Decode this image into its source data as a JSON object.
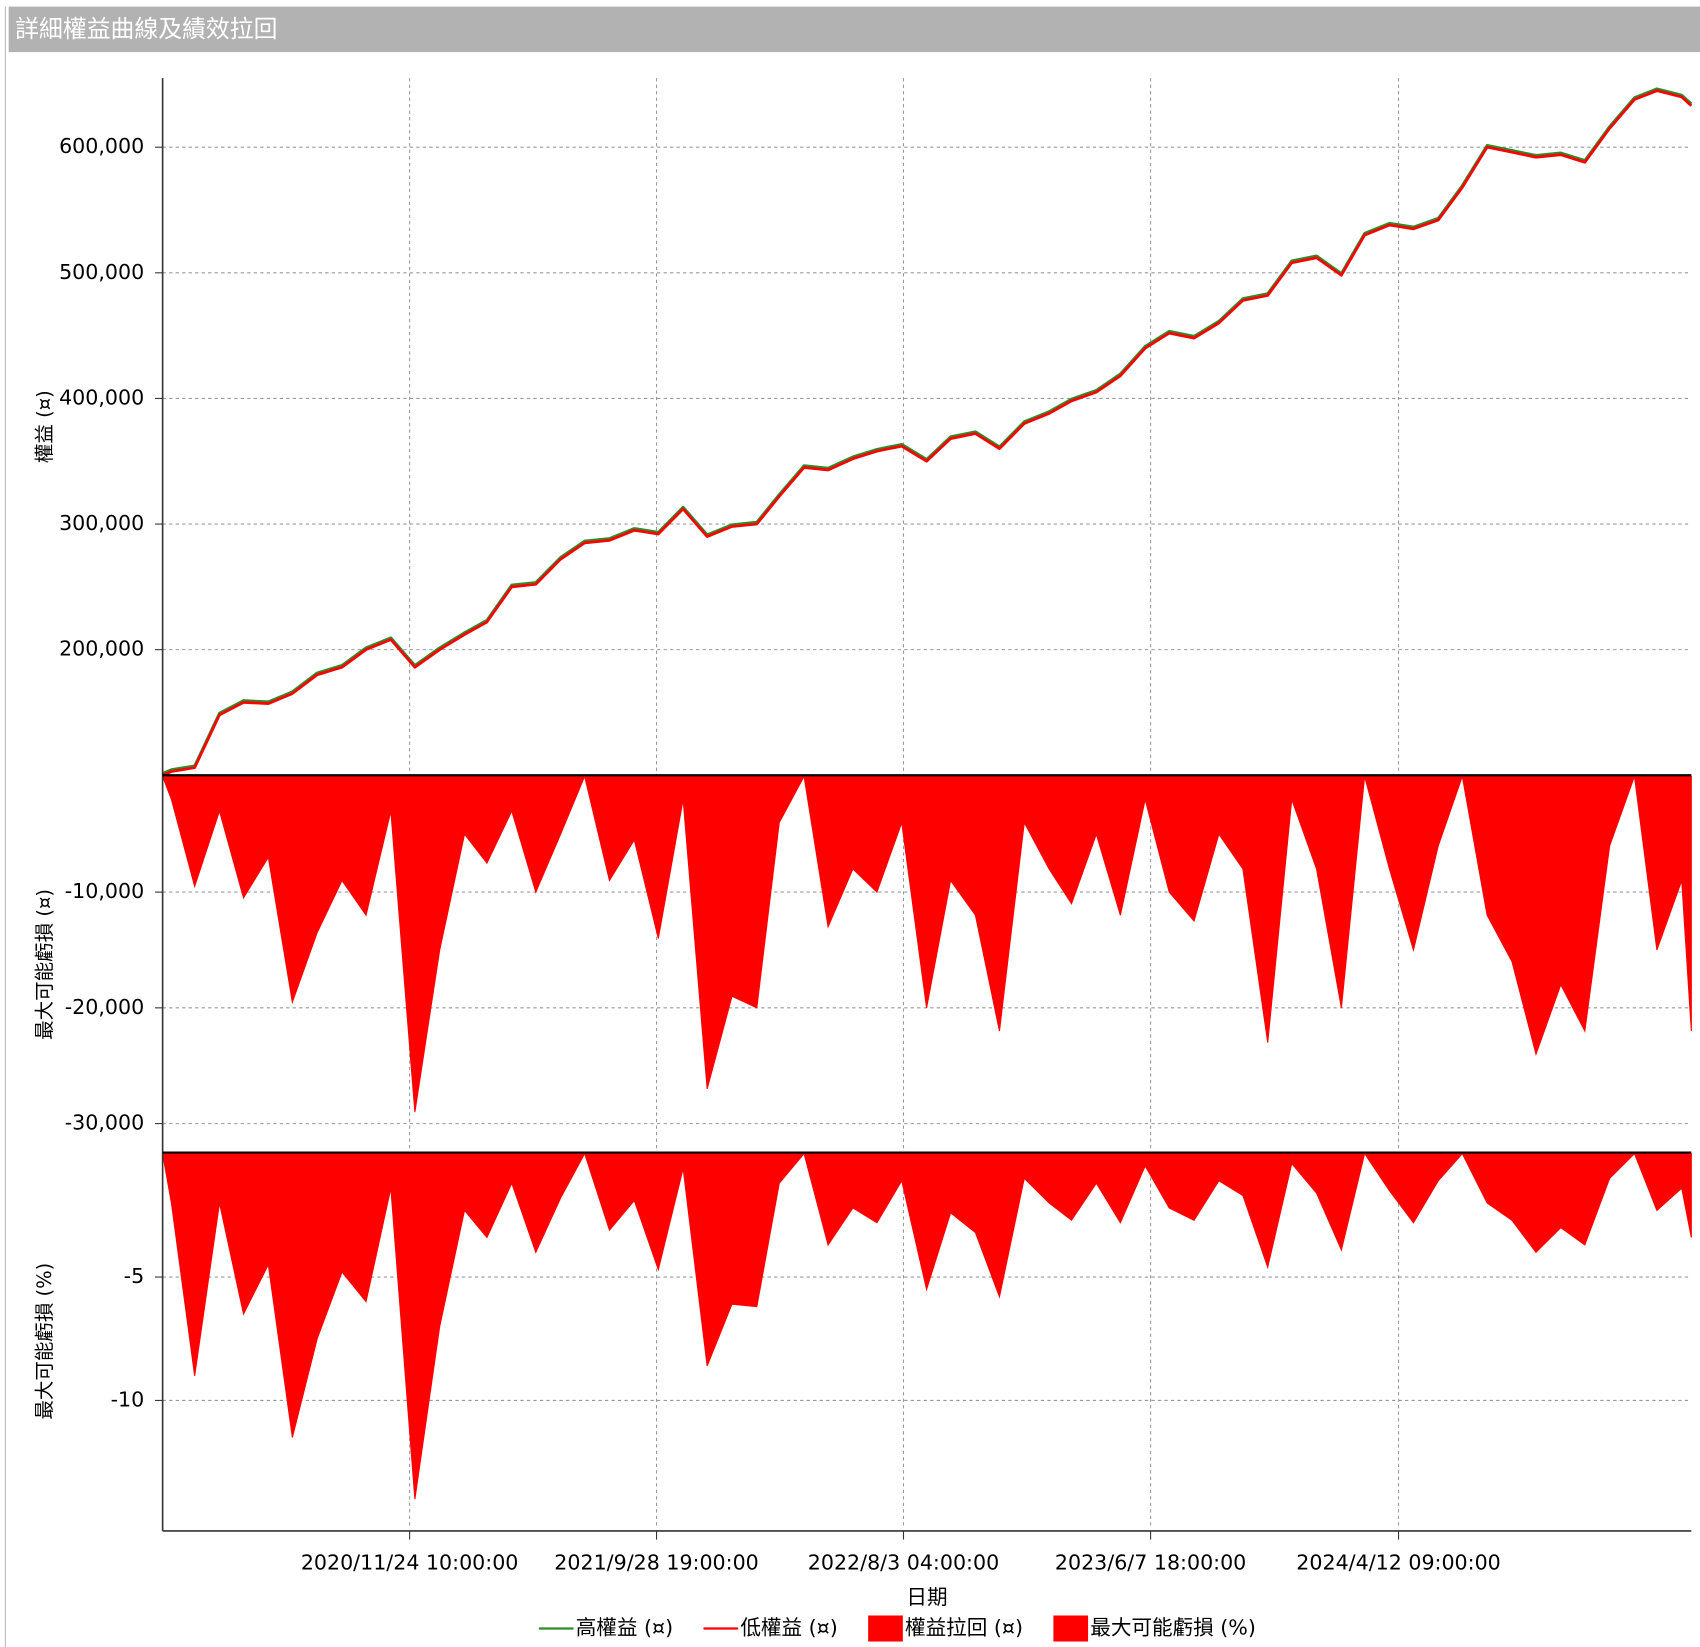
{
  "header": {
    "title": "詳細權益曲線及績效拉回"
  },
  "chart_data": [
    {
      "type": "line",
      "y_label": "權益 (¤)",
      "x": [
        "2020/1/21",
        "2020/2/1",
        "2020/3/1",
        "2020/4/1",
        "2020/5/1",
        "2020/6/1",
        "2020/7/1",
        "2020/8/1",
        "2020/9/1",
        "2020/10/1",
        "2020/11/1",
        "2020/12/1",
        "2021/1/1",
        "2021/2/1",
        "2021/3/1",
        "2021/4/1",
        "2021/5/1",
        "2021/6/1",
        "2021/7/1",
        "2021/8/1",
        "2021/9/1",
        "2021/10/1",
        "2021/11/1",
        "2021/12/1",
        "2022/1/1",
        "2022/2/1",
        "2022/3/1",
        "2022/4/1",
        "2022/5/1",
        "2022/6/1",
        "2022/7/1",
        "2022/8/1",
        "2022/9/1",
        "2022/10/1",
        "2022/11/1",
        "2022/12/1",
        "2023/1/1",
        "2023/2/1",
        "2023/3/1",
        "2023/4/1",
        "2023/5/1",
        "2023/6/1",
        "2023/7/1",
        "2023/8/1",
        "2023/9/1",
        "2023/10/1",
        "2023/11/1",
        "2023/12/1",
        "2024/1/1",
        "2024/2/1",
        "2024/3/1",
        "2024/4/1",
        "2024/5/1",
        "2024/6/1",
        "2024/7/1",
        "2024/8/1",
        "2024/9/1",
        "2024/10/1",
        "2024/11/1",
        "2024/12/1",
        "2025/1/1",
        "2025/2/1",
        "2025/3/1",
        "2025/4/1",
        "2025/4/13"
      ],
      "ylim": [
        100000,
        655000
      ],
      "yticks": [
        {
          "value": 200000,
          "label": "200,000"
        },
        {
          "value": 300000,
          "label": "300,000"
        },
        {
          "value": 400000,
          "label": "400,000"
        },
        {
          "value": 500000,
          "label": "500,000"
        },
        {
          "value": 600000,
          "label": "600,000"
        }
      ],
      "grid": true,
      "series": [
        {
          "name": "高權益 (¤)",
          "color": "#2e8b2e",
          "values": [
            101500,
            104500,
            107500,
            149500,
            159500,
            158500,
            166500,
            181500,
            187500,
            201500,
            209500,
            187500,
            201500,
            213500,
            223500,
            251500,
            253500,
            273500,
            286500,
            288500,
            296500,
            293500,
            313500,
            291500,
            299500,
            301500,
            323500,
            346500,
            344500,
            353500,
            359500,
            363500,
            351500,
            369500,
            373500,
            361500,
            381500,
            389500,
            399500,
            406500,
            419500,
            441500,
            453500,
            449500,
            461500,
            479500,
            483500,
            509500,
            513500,
            499500,
            531500,
            539500,
            536500,
            543500,
            569500,
            601500,
            597500,
            593500,
            595500,
            589500,
            616500,
            639500,
            646500,
            641500,
            634500
          ]
        },
        {
          "name": "低權益 (¤)",
          "color": "#ff0000",
          "values": [
            100000,
            103000,
            106000,
            148000,
            158000,
            157000,
            165000,
            180000,
            186000,
            200000,
            208000,
            186000,
            200000,
            212000,
            222000,
            250000,
            252000,
            272000,
            285000,
            287000,
            295000,
            292000,
            312000,
            290000,
            298000,
            300000,
            322000,
            345000,
            343000,
            352000,
            358000,
            362000,
            350000,
            368000,
            372000,
            360000,
            380000,
            388000,
            398000,
            405000,
            418000,
            440000,
            452000,
            448000,
            460000,
            478000,
            482000,
            508000,
            512000,
            498000,
            530000,
            538000,
            535000,
            542000,
            568000,
            600000,
            596000,
            592000,
            594000,
            588000,
            615000,
            638000,
            645000,
            640000,
            633000
          ]
        }
      ]
    },
    {
      "type": "area",
      "y_label": "最大可能虧損 (¤)",
      "x": [
        "2020/1/21",
        "2020/2/1",
        "2020/3/1",
        "2020/4/1",
        "2020/5/1",
        "2020/6/1",
        "2020/7/1",
        "2020/8/1",
        "2020/9/1",
        "2020/10/1",
        "2020/11/1",
        "2020/12/1",
        "2021/1/1",
        "2021/2/1",
        "2021/3/1",
        "2021/4/1",
        "2021/5/1",
        "2021/6/1",
        "2021/7/1",
        "2021/8/1",
        "2021/9/1",
        "2021/10/1",
        "2021/11/1",
        "2021/12/1",
        "2022/1/1",
        "2022/2/1",
        "2022/3/1",
        "2022/4/1",
        "2022/5/1",
        "2022/6/1",
        "2022/7/1",
        "2022/8/1",
        "2022/9/1",
        "2022/10/1",
        "2022/11/1",
        "2022/12/1",
        "2023/1/1",
        "2023/2/1",
        "2023/3/1",
        "2023/4/1",
        "2023/5/1",
        "2023/6/1",
        "2023/7/1",
        "2023/8/1",
        "2023/9/1",
        "2023/10/1",
        "2023/11/1",
        "2023/12/1",
        "2024/1/1",
        "2024/2/1",
        "2024/3/1",
        "2024/4/1",
        "2024/5/1",
        "2024/6/1",
        "2024/7/1",
        "2024/8/1",
        "2024/9/1",
        "2024/10/1",
        "2024/11/1",
        "2024/12/1",
        "2025/1/1",
        "2025/2/1",
        "2025/3/1",
        "2025/4/1",
        "2025/4/13"
      ],
      "ylim": [
        -32500,
        0
      ],
      "yticks": [
        {
          "value": -30000,
          "label": "-30,000"
        },
        {
          "value": -20000,
          "label": "-20,000"
        },
        {
          "value": -10000,
          "label": "-10,000"
        }
      ],
      "grid": true,
      "series": [
        {
          "name": "權益拉回 (¤)",
          "color": "#ff0000",
          "values": [
            0,
            -2000,
            -9500,
            -3000,
            -10500,
            -7000,
            -19500,
            -13500,
            -9000,
            -12000,
            -3000,
            -29000,
            -15000,
            -5000,
            -7500,
            -3000,
            -10000,
            -5000,
            0,
            -9000,
            -5500,
            -14000,
            -2000,
            -27000,
            -19000,
            -20000,
            -4000,
            0,
            -13000,
            -8000,
            -10000,
            -4000,
            -20000,
            -9000,
            -12000,
            -22000,
            -4000,
            -8000,
            -11000,
            -5000,
            -12000,
            -2000,
            -10000,
            -12500,
            -5000,
            -8000,
            -23000,
            -2000,
            -8000,
            -20000,
            0,
            -8000,
            -15000,
            -6000,
            0,
            -12000,
            -16000,
            -24000,
            -18000,
            -22000,
            -6000,
            0,
            -15000,
            -9000,
            -22000
          ]
        }
      ]
    },
    {
      "type": "area",
      "y_label": "最大可能虧損 (%)",
      "x_label": "日期",
      "x": [
        "2020/1/21",
        "2020/2/1",
        "2020/3/1",
        "2020/4/1",
        "2020/5/1",
        "2020/6/1",
        "2020/7/1",
        "2020/8/1",
        "2020/9/1",
        "2020/10/1",
        "2020/11/1",
        "2020/12/1",
        "2021/1/1",
        "2021/2/1",
        "2021/3/1",
        "2021/4/1",
        "2021/5/1",
        "2021/6/1",
        "2021/7/1",
        "2021/8/1",
        "2021/9/1",
        "2021/10/1",
        "2021/11/1",
        "2021/12/1",
        "2022/1/1",
        "2022/2/1",
        "2022/3/1",
        "2022/4/1",
        "2022/5/1",
        "2022/6/1",
        "2022/7/1",
        "2022/8/1",
        "2022/9/1",
        "2022/10/1",
        "2022/11/1",
        "2022/12/1",
        "2023/1/1",
        "2023/2/1",
        "2023/3/1",
        "2023/4/1",
        "2023/5/1",
        "2023/6/1",
        "2023/7/1",
        "2023/8/1",
        "2023/9/1",
        "2023/10/1",
        "2023/11/1",
        "2023/12/1",
        "2024/1/1",
        "2024/2/1",
        "2024/3/1",
        "2024/4/1",
        "2024/5/1",
        "2024/6/1",
        "2024/7/1",
        "2024/8/1",
        "2024/9/1",
        "2024/10/1",
        "2024/11/1",
        "2024/12/1",
        "2025/1/1",
        "2025/2/1",
        "2025/3/1",
        "2025/4/1",
        "2025/4/13"
      ],
      "xlim": [
        "2020/1/21",
        "2025/4/13"
      ],
      "xticks": [
        "2020/11/24 10:00:00",
        "2021/9/28 19:00:00",
        "2022/8/3 04:00:00",
        "2023/6/7 18:00:00",
        "2024/4/12 09:00:00"
      ],
      "ylim": [
        -15.2,
        0
      ],
      "yticks": [
        -10,
        -5
      ],
      "grid": true,
      "series": [
        {
          "name": "最大可能虧損 (%)",
          "color": "#ff0000",
          "values": [
            0,
            -2,
            -9,
            -2,
            -6.5,
            -4.5,
            -11.5,
            -7.5,
            -4.8,
            -6,
            -1.4,
            -14,
            -7,
            -2.3,
            -3.4,
            -1.2,
            -4,
            -1.8,
            0,
            -3.1,
            -1.9,
            -4.7,
            -0.6,
            -8.6,
            -6.1,
            -6.2,
            -1.2,
            0,
            -3.7,
            -2.2,
            -2.8,
            -1.1,
            -5.5,
            -2.4,
            -3.2,
            -5.8,
            -1,
            -2,
            -2.7,
            -1.2,
            -2.8,
            -0.5,
            -2.2,
            -2.7,
            -1.1,
            -1.7,
            -4.6,
            -0.4,
            -1.6,
            -3.9,
            0,
            -1.5,
            -2.8,
            -1.1,
            0,
            -2,
            -2.7,
            -4,
            -3,
            -3.7,
            -1,
            0,
            -2.3,
            -1.4,
            -3.4
          ]
        }
      ]
    }
  ]
}
